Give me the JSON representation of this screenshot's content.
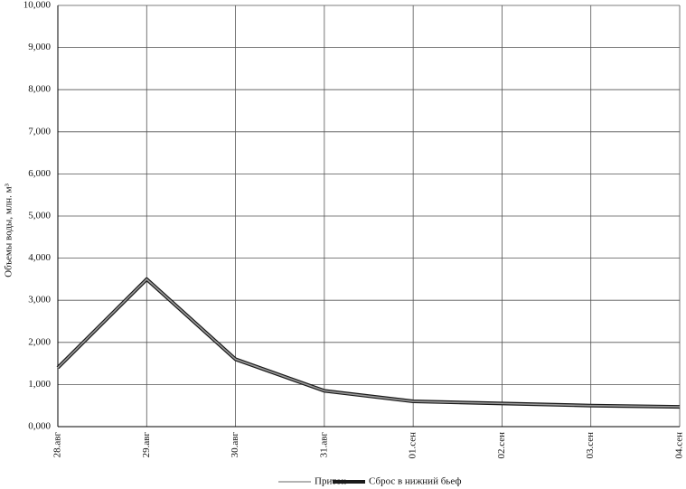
{
  "chart_data": {
    "type": "line",
    "y_label": "Объемы воды, млн. м³",
    "categories": [
      "28.авг",
      "29.авг",
      "30.авг",
      "31.авг",
      "01.сен",
      "02.сен",
      "03.сен",
      "04.сен"
    ],
    "series": [
      {
        "name": "Приток",
        "color": "#9a9a9a",
        "values": [
          1.4,
          3.5,
          1.6,
          0.85,
          0.6,
          0.55,
          0.5,
          0.47
        ]
      },
      {
        "name": "Сброс в нижний бьеф",
        "color": "#1a1a1a",
        "values": [
          1.4,
          3.5,
          1.6,
          0.85,
          0.6,
          0.55,
          0.5,
          0.47
        ]
      }
    ],
    "ylim": [
      0,
      10
    ],
    "yticks": [
      {
        "value": 0,
        "label": "0,000"
      },
      {
        "value": 1,
        "label": "1,000"
      },
      {
        "value": 2,
        "label": "2,000"
      },
      {
        "value": 3,
        "label": "3,000"
      },
      {
        "value": 4,
        "label": "4,000"
      },
      {
        "value": 5,
        "label": "5,000"
      },
      {
        "value": 6,
        "label": "6,000"
      },
      {
        "value": 7,
        "label": "7,000"
      },
      {
        "value": 8,
        "label": "8,000"
      },
      {
        "value": 9,
        "label": "9,000"
      },
      {
        "value": 10,
        "label": "10,000"
      }
    ],
    "grid": true
  }
}
